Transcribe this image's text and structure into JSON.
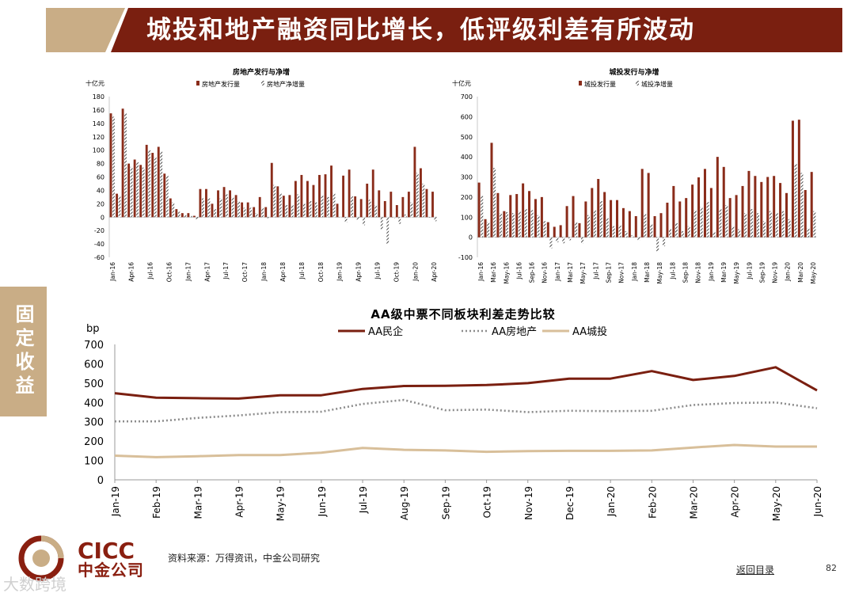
{
  "header": {
    "title": "城投和地产融资同比增长，低评级利差有所波动"
  },
  "side_tab": "固定收益",
  "footer": {
    "source": "资料来源：万得资讯，中金公司研究",
    "back_link": "返回目录",
    "page": "82",
    "logo_en": "CICC",
    "logo_cn": "中金公司",
    "watermark": "大数跨境"
  },
  "colors": {
    "header": "#7a1f10",
    "tan": "#c9ad86",
    "bar": "#8a2c1a"
  },
  "chart_data": [
    {
      "type": "bar",
      "title": "房地产发行与净增",
      "unit": "十亿元",
      "legend": [
        "房地产发行量",
        "房地产净增量"
      ],
      "ylim": [
        -60,
        180
      ],
      "yticks": [
        -60,
        -40,
        -20,
        0,
        20,
        40,
        60,
        80,
        100,
        120,
        140,
        160,
        180
      ],
      "xticklabels": [
        "Jan-16",
        "Apr-16",
        "Jul-16",
        "Oct-16",
        "Jan-17",
        "Apr-17",
        "Jul-17",
        "Oct-17",
        "Jan-18",
        "Apr-18",
        "Jul-18",
        "Oct-18",
        "Jan-19",
        "Apr-19",
        "Jul-19",
        "Oct-19",
        "Jan-20",
        "Apr-20"
      ],
      "series": [
        {
          "name": "房地产发行量",
          "values": [
            155,
            35,
            162,
            80,
            86,
            78,
            108,
            96,
            105,
            65,
            28,
            12,
            6,
            6,
            2,
            42,
            42,
            20,
            40,
            45,
            40,
            33,
            22,
            22,
            15,
            30,
            15,
            81,
            46,
            32,
            33,
            54,
            63,
            54,
            48,
            63,
            64,
            77,
            20,
            62,
            71,
            31,
            27,
            50,
            71,
            40,
            24,
            38,
            18,
            30,
            38,
            105,
            73,
            42,
            38
          ]
        },
        {
          "name": "房地产净增量",
          "values": [
            150,
            32,
            155,
            75,
            82,
            74,
            100,
            90,
            98,
            62,
            22,
            8,
            3,
            2,
            -3,
            28,
            28,
            12,
            28,
            34,
            30,
            24,
            14,
            14,
            6,
            14,
            -2,
            48,
            36,
            18,
            18,
            34,
            20,
            24,
            22,
            32,
            30,
            36,
            0,
            -8,
            31,
            -4,
            -12,
            26,
            18,
            -18,
            -40,
            -2,
            -10,
            4,
            22,
            66,
            50,
            0,
            -6
          ]
        }
      ]
    },
    {
      "type": "bar",
      "title": "城投发行与净增",
      "unit": "十亿元",
      "legend": [
        "城投发行量",
        "城投净增量"
      ],
      "ylim": [
        -100,
        700
      ],
      "yticks": [
        -100,
        0,
        100,
        200,
        300,
        400,
        500,
        600,
        700
      ],
      "xticklabels": [
        "Jan-16",
        "Mar-16",
        "May-16",
        "Jul-16",
        "Sep-16",
        "Nov-16",
        "Jan-17",
        "Mar-17",
        "May-17",
        "Jul-17",
        "Sep-17",
        "Nov-17",
        "Jan-18",
        "Mar-18",
        "May-18",
        "Jul-18",
        "Sep-18",
        "Nov-18",
        "Jan-19",
        "Mar-19",
        "May-19",
        "Jul-19",
        "Sep-19",
        "Nov-19",
        "Jan-20",
        "Mar-20",
        "May-20"
      ],
      "series": [
        {
          "name": "城投发行量",
          "values": [
            272,
            90,
            470,
            220,
            130,
            210,
            215,
            268,
            230,
            190,
            200,
            75,
            52,
            60,
            155,
            205,
            70,
            178,
            245,
            290,
            225,
            185,
            185,
            145,
            130,
            105,
            340,
            320,
            105,
            120,
            172,
            255,
            178,
            195,
            262,
            298,
            340,
            245,
            400,
            350,
            195,
            210,
            255,
            330,
            305,
            275,
            300,
            305,
            270,
            220,
            580,
            585,
            235,
            325
          ]
        },
        {
          "name": "城投净增量",
          "values": [
            205,
            75,
            345,
            120,
            125,
            120,
            130,
            140,
            135,
            110,
            80,
            -55,
            -25,
            -30,
            -15,
            75,
            -30,
            110,
            135,
            180,
            95,
            55,
            60,
            30,
            10,
            -15,
            115,
            65,
            -70,
            -45,
            40,
            70,
            30,
            55,
            135,
            150,
            175,
            25,
            140,
            160,
            55,
            40,
            120,
            140,
            120,
            80,
            130,
            120,
            130,
            90,
            365,
            320,
            45,
            130
          ]
        }
      ]
    },
    {
      "type": "line",
      "title": "AA级中票不同板块利差走势比较",
      "ylabel": "bp",
      "ylim": [
        0,
        700
      ],
      "yticks": [
        0,
        100,
        200,
        300,
        400,
        500,
        600,
        700
      ],
      "categories": [
        "Jan-19",
        "Feb-19",
        "Mar-19",
        "Apr-19",
        "May-19",
        "Jun-19",
        "Jul-19",
        "Aug-19",
        "Sep-19",
        "Oct-19",
        "Nov-19",
        "Dec-19",
        "Jan-20",
        "Feb-20",
        "Mar-20",
        "Apr-20",
        "May-20",
        "Jun-20"
      ],
      "series": [
        {
          "name": "AA民企",
          "values": [
            448,
            425,
            422,
            420,
            437,
            437,
            470,
            485,
            486,
            490,
            500,
            523,
            523,
            562,
            516,
            537,
            582,
            462
          ]
        },
        {
          "name": "AA房地产",
          "values": [
            302,
            302,
            320,
            333,
            350,
            352,
            392,
            413,
            360,
            363,
            350,
            357,
            355,
            357,
            387,
            397,
            400,
            370
          ]
        },
        {
          "name": "AA城投",
          "values": [
            125,
            117,
            122,
            128,
            128,
            140,
            165,
            155,
            152,
            145,
            148,
            150,
            150,
            152,
            167,
            180,
            172,
            172
          ]
        }
      ]
    }
  ]
}
